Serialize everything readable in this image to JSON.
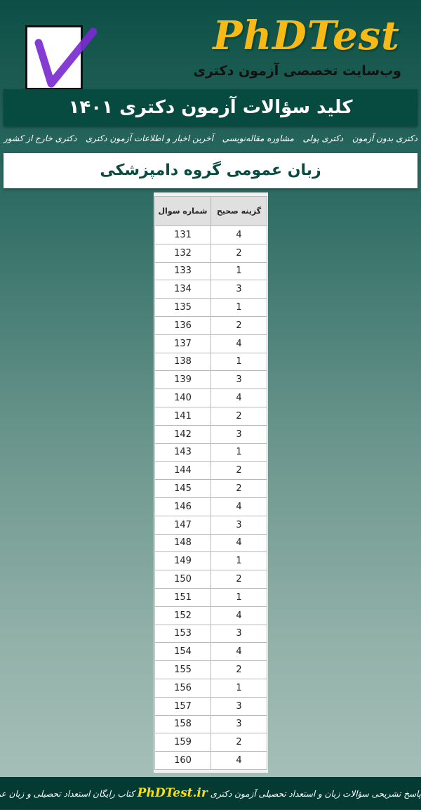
{
  "header": {
    "brand": "PhDTest",
    "tagline": "وب‌سایت تخصصی آزمون دکتری",
    "title": "کلید سؤالات آزمون دکتری ۱۴۰۱",
    "logo_icon": "checkmark-box-icon",
    "brand_color": "#f7b916"
  },
  "nav": {
    "items": [
      {
        "label": "دکتری بدون آزمون"
      },
      {
        "label": "دکتری پولی"
      },
      {
        "label": "مشاوره مقاله‌نویسی"
      },
      {
        "label": "آخرین اخبار و اطلاعات آزمون دکتری"
      },
      {
        "label": "دکتری خارج از کشور"
      }
    ]
  },
  "subtitle": "زبان عمومی گروه دامپزشکی",
  "table": {
    "headers": {
      "question": "شماره سوال",
      "answer": "گزینه صحیح"
    },
    "rows": [
      [
        "131",
        "4"
      ],
      [
        "132",
        "2"
      ],
      [
        "133",
        "1"
      ],
      [
        "134",
        "3"
      ],
      [
        "135",
        "1"
      ],
      [
        "136",
        "2"
      ],
      [
        "137",
        "4"
      ],
      [
        "138",
        "1"
      ],
      [
        "139",
        "3"
      ],
      [
        "140",
        "4"
      ],
      [
        "141",
        "2"
      ],
      [
        "142",
        "3"
      ],
      [
        "143",
        "1"
      ],
      [
        "144",
        "2"
      ],
      [
        "145",
        "2"
      ],
      [
        "146",
        "4"
      ],
      [
        "147",
        "3"
      ],
      [
        "148",
        "4"
      ],
      [
        "149",
        "1"
      ],
      [
        "150",
        "2"
      ],
      [
        "151",
        "1"
      ],
      [
        "152",
        "4"
      ],
      [
        "153",
        "3"
      ],
      [
        "154",
        "4"
      ],
      [
        "155",
        "2"
      ],
      [
        "156",
        "1"
      ],
      [
        "157",
        "3"
      ],
      [
        "158",
        "3"
      ],
      [
        "159",
        "2"
      ],
      [
        "160",
        "4"
      ]
    ]
  },
  "footer": {
    "before": "پاسخ تشریحی سؤالات زبان و استعداد تحصیلی آزمون دکتری",
    "brand": "PhDTest.ir",
    "after": "کتاب رایگان استعداد تحصیلی و زبان عمومی"
  }
}
